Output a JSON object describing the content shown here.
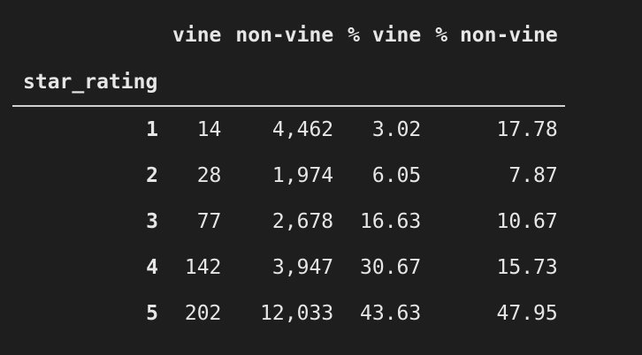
{
  "table": {
    "index_name": "star_rating",
    "columns": [
      "vine",
      "non-vine",
      "% vine",
      "% non-vine"
    ],
    "rows": [
      {
        "index": "1",
        "values": [
          "14",
          "4,462",
          "3.02",
          "17.78"
        ]
      },
      {
        "index": "2",
        "values": [
          "28",
          "1,974",
          "6.05",
          "7.87"
        ]
      },
      {
        "index": "3",
        "values": [
          "77",
          "2,678",
          "16.63",
          "10.67"
        ]
      },
      {
        "index": "4",
        "values": [
          "142",
          "3,947",
          "30.67",
          "15.73"
        ]
      },
      {
        "index": "5",
        "values": [
          "202",
          "12,033",
          "43.63",
          "47.95"
        ]
      }
    ]
  },
  "colors": {
    "background": "#1e1e1e",
    "text": "#e6e6e6",
    "rule": "#d0d0d0"
  }
}
